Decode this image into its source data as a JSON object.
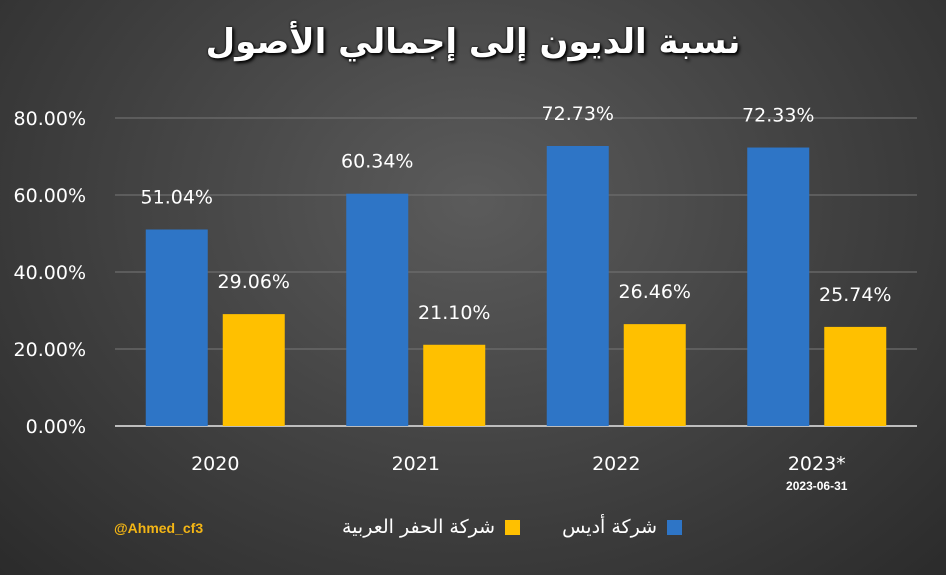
{
  "chart_data": {
    "type": "bar",
    "title": "نسبة الديون إلى إجمالي الأصول",
    "categories": [
      "2020",
      "2021",
      "2022",
      "2023*"
    ],
    "category_notes": [
      "",
      "",
      "",
      "2023-06-31"
    ],
    "series": [
      {
        "name": "شركة أديس",
        "color": "#2e75c6",
        "values": [
          51.04,
          60.34,
          72.73,
          72.33
        ],
        "labels": [
          "51.04%",
          "60.34%",
          "72.73%",
          "72.33%"
        ]
      },
      {
        "name": "شركة الحفر العربية",
        "color": "#ffc000",
        "values": [
          29.06,
          21.1,
          26.46,
          25.74
        ],
        "labels": [
          "29.06%",
          "21.10%",
          "26.46%",
          "25.74%"
        ]
      }
    ],
    "yticks": [
      "0.00%",
      "20.00%",
      "40.00%",
      "60.00%",
      "80.00%"
    ],
    "ylim": [
      0,
      80
    ],
    "grid": true,
    "legend_position": "bottom"
  },
  "credit": "@Ahmed_cf3"
}
